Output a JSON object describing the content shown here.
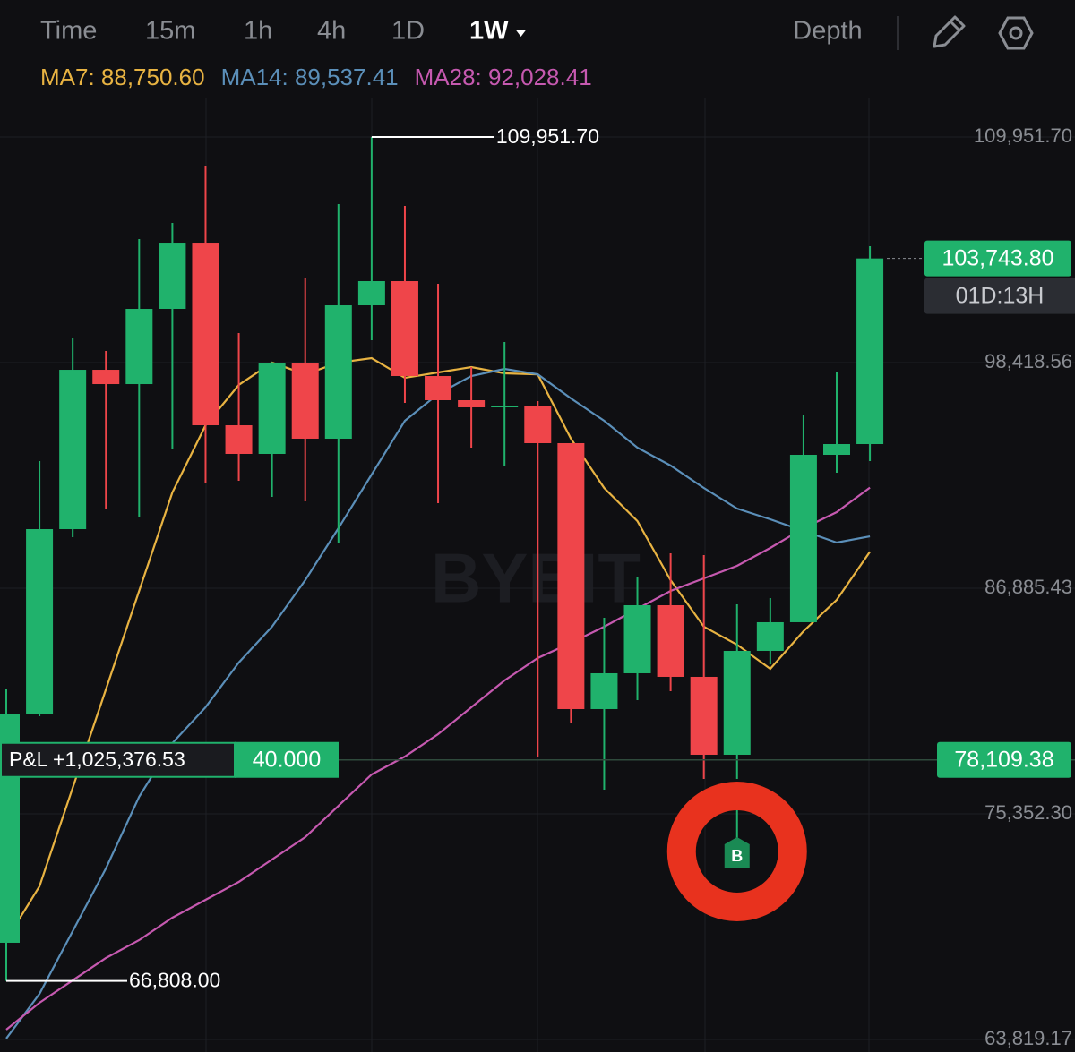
{
  "tabs": [
    "Time",
    "15m",
    "1h",
    "4h",
    "1D",
    "1W"
  ],
  "active_tab": 5,
  "depth": "Depth",
  "chart_data": {
    "type": "candlestick",
    "up_color": "#20b26c",
    "down_color": "#ef454a",
    "open": [
      68762,
      80432,
      89906,
      98052,
      97320,
      101165,
      104551,
      95215,
      93751,
      98373,
      94529,
      101348,
      102584,
      97732,
      96497,
      96131,
      96222,
      94300,
      80707,
      82538,
      86016,
      82355,
      78373,
      83682,
      85147,
      93705,
      94254
    ],
    "high": [
      81714,
      93385,
      99654,
      99014,
      104734,
      105558,
      108487,
      99929,
      98450,
      102767,
      106519,
      109951.7,
      106428,
      102446,
      98190,
      99472,
      96451,
      94300,
      85376,
      87435,
      88671,
      88579,
      86062,
      86383,
      95765,
      97916,
      104369
    ],
    "low": [
      66808,
      80340,
      89494,
      90959,
      90547,
      93980,
      92241,
      92378,
      91554,
      91325,
      89174,
      99563,
      96360,
      91234,
      94071,
      93156,
      78282,
      79975,
      76589,
      81165,
      81623,
      77138,
      77138,
      82996,
      85147,
      92790,
      93385
    ],
    "close": [
      80432,
      89906,
      98052,
      97320,
      101165,
      104551,
      95215,
      93751,
      98373,
      94529,
      101348,
      102584,
      97732,
      96497,
      96131,
      96222,
      94300,
      80707,
      82538,
      86016,
      82355,
      78373,
      83682,
      85147,
      93705,
      94254,
      103743.8
    ],
    "series": [
      {
        "name": "MA7: 88,750.60",
        "color": "#e8b342",
        "values": [
          68899,
          71646,
          76682,
          81714,
          86748,
          91780,
          95215,
          97275,
          98418,
          97820,
          98418,
          98647,
          97640,
          97915,
          98190,
          97870,
          97820,
          94529,
          92011,
          90318,
          87298,
          84920,
          84000,
          82766,
          84690,
          86290,
          88750.6
        ]
      },
      {
        "name": "MA14: 89,537.41",
        "color": "#5b8fb9",
        "values": [
          63866,
          66153,
          69358,
          72560,
          76224,
          78967,
          80800,
          83086,
          84918,
          87298,
          89952,
          92698,
          95444,
          96817,
          97732,
          98098,
          97820,
          96588,
          95444,
          94071,
          93156,
          92011,
          90958,
          90410,
          89815,
          89220,
          89537.41
        ]
      },
      {
        "name": "MA28: 92,028.41",
        "color": "#c659b0",
        "values": [
          64323,
          65696,
          66840,
          67984,
          68899,
          70043,
          70958,
          71873,
          73017,
          74161,
          75763,
          77365,
          78280,
          79424,
          80798,
          82171,
          83315,
          84093,
          84918,
          85833,
          86748,
          87389,
          88030,
          88945,
          89952,
          90776,
          92028.41
        ]
      }
    ],
    "ylim": [
      63200,
      111500
    ],
    "yticks": [
      {
        "value": 109951.7,
        "label": "109,951.70"
      },
      {
        "value": 98418.56,
        "label": "98,418.56"
      },
      {
        "value": 86885.43,
        "label": "86,885.43"
      },
      {
        "value": 75352.3,
        "label": "75,352.30"
      },
      {
        "value": 63819.17,
        "label": "63,819.17"
      }
    ],
    "grid": true,
    "high_marker": {
      "value": 109951.7,
      "label": "109,951.70"
    },
    "low_marker": {
      "value": 66808.0,
      "label": "66,808.00"
    },
    "last_price": {
      "value": 103743.8,
      "label": "103,743.80"
    },
    "countdown": "01D:13H",
    "position": {
      "value": 78109.38,
      "label": "78,109.38",
      "pnl": "P&L +1,025,376.53",
      "size": 40,
      "size_label": "40.000"
    },
    "marker": "B",
    "watermark": "BYBIT"
  }
}
